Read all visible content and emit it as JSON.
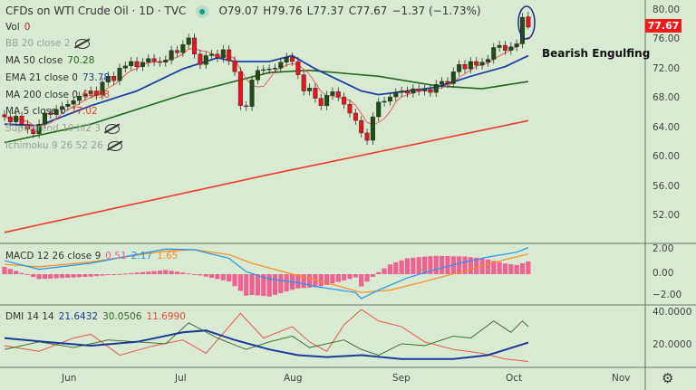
{
  "header": {
    "title": "CFDs on WTI Crude Oil · 1D · TVC",
    "ohlc": {
      "open": "O79.07",
      "high": "H79.76",
      "low": "L77.37",
      "close": "C77.67",
      "change": "−1.37 (−1.73%)"
    }
  },
  "legend": {
    "vol": {
      "label": "Vol",
      "value": "0"
    },
    "bb": {
      "label": "BB 20 close 2"
    },
    "ma50": {
      "label": "MA 50 close",
      "value": "70.28"
    },
    "ema21": {
      "label": "EMA 21 close 0",
      "value": "73.78"
    },
    "ma200": {
      "label": "MA 200 close 0",
      "value": "64.98"
    },
    "ma5": {
      "label": "MA 5 close 0",
      "value": "77.02"
    },
    "supertrend": {
      "label": "Supertrend 10 hl2 3"
    },
    "ichimoku": {
      "label": "Ichimoku 9 26 52 26"
    },
    "macd": {
      "label": "MACD 12 26 close 9",
      "hist": "0.51",
      "macd": "2.17",
      "signal": "1.65"
    },
    "dmi": {
      "label": "DMI 14 14",
      "adx": "21.6432",
      "plus_di": "30.0506",
      "minus_di": "11.6990"
    }
  },
  "annotation": "Bearish Engulfing",
  "price_axis": {
    "labels": [
      "80.00",
      "76.00",
      "72.00",
      "68.00",
      "64.00",
      "60.00",
      "56.00",
      "52.00"
    ],
    "last_price": "77.67"
  },
  "macd_axis": {
    "labels": [
      "2.00",
      "0.00",
      "−2.00"
    ]
  },
  "dmi_axis": {
    "labels": [
      "40.0000",
      "20.0000"
    ]
  },
  "time_axis": {
    "labels": [
      "Jun",
      "Jul",
      "Aug",
      "Sep",
      "Oct",
      "Nov"
    ]
  },
  "colors": {
    "background": "#d9ead3",
    "up": "#1f4d14",
    "down": "#e8141b",
    "ma5": "#f05050",
    "ema21": "#1a3fa8",
    "ma50": "#1f6b1a",
    "ma200": "#f23a2a",
    "macd": "#2196f3",
    "signal": "#ff8a1e",
    "hist": "#f06292",
    "adx": "#1a3a9a",
    "plus_di": "#2e6b22",
    "minus_di": "#f04a3a",
    "last_price": "#f21b1b"
  },
  "chart_data": {
    "type": "candlestick",
    "closes": [
      65.5,
      64.8,
      65.6,
      64.5,
      63.8,
      63.2,
      64.5,
      66.0,
      65.8,
      66.5,
      66.9,
      67.2,
      67.7,
      68.3,
      68.6,
      69.0,
      68.4,
      70.2,
      71.0,
      70.4,
      72.1,
      72.4,
      73.0,
      72.3,
      72.9,
      73.4,
      73.0,
      72.9,
      73.2,
      74.5,
      74.2,
      75.3,
      76.2,
      74.0,
      72.6,
      73.8,
      74.0,
      73.5,
      74.6,
      73.1,
      71.6,
      67.0,
      66.9,
      70.5,
      71.8,
      71.9,
      72.0,
      72.1,
      72.9,
      73.6,
      73.0,
      71.2,
      69.0,
      69.4,
      68.0,
      67.0,
      68.4,
      68.9,
      68.2,
      67.2,
      66.0,
      65.0,
      63.3,
      62.3,
      65.5,
      67.5,
      67.6,
      68.2,
      68.8,
      69.0,
      68.7,
      69.3,
      69.0,
      69.2,
      68.8,
      69.9,
      70.3,
      70.0,
      71.6,
      72.6,
      72.0,
      73.0,
      72.5,
      72.9,
      73.3,
      74.9,
      75.2,
      74.5,
      75.0,
      75.4,
      79.0,
      77.67
    ],
    "last_candle": {
      "open": 79.07,
      "high": 79.76,
      "low": 77.37,
      "close": 77.67
    },
    "ema21": [
      [
        0,
        64.5
      ],
      [
        6,
        64.3
      ],
      [
        15,
        67
      ],
      [
        23,
        69
      ],
      [
        31,
        72
      ],
      [
        37,
        73.5
      ],
      [
        40,
        73
      ],
      [
        46,
        73
      ],
      [
        50,
        73.8
      ],
      [
        54,
        72
      ],
      [
        62,
        69
      ],
      [
        65,
        68.5
      ],
      [
        75,
        69.5
      ],
      [
        81,
        71
      ],
      [
        87,
        72.3
      ],
      [
        91,
        73.78
      ]
    ],
    "ma50": [
      [
        0,
        62
      ],
      [
        15,
        64.5
      ],
      [
        31,
        68.5
      ],
      [
        46,
        71.5
      ],
      [
        53,
        71.8
      ],
      [
        65,
        71
      ],
      [
        75,
        69.7
      ],
      [
        83,
        69.3
      ],
      [
        91,
        70.28
      ]
    ],
    "ma200": [
      [
        0,
        49.8
      ],
      [
        45,
        57.5
      ],
      [
        91,
        64.98
      ]
    ],
    "macd": [
      [
        0,
        1.1
      ],
      [
        6,
        0.4
      ],
      [
        15,
        0.9
      ],
      [
        28,
        2.07
      ],
      [
        33,
        2.0
      ],
      [
        39,
        1.3
      ],
      [
        42,
        0.2
      ],
      [
        46,
        -0.4
      ],
      [
        51,
        -0.7
      ],
      [
        54,
        -1.0
      ],
      [
        61,
        -1.5
      ],
      [
        62,
        -2.0
      ],
      [
        65,
        -1.3
      ],
      [
        70,
        -0.3
      ],
      [
        75,
        0.4
      ],
      [
        80,
        1.0
      ],
      [
        84,
        1.4
      ],
      [
        89,
        1.8
      ],
      [
        91,
        2.17
      ]
    ],
    "signal": [
      [
        0,
        0.8
      ],
      [
        6,
        0.6
      ],
      [
        15,
        1.0
      ],
      [
        28,
        1.9
      ],
      [
        33,
        2.0
      ],
      [
        39,
        1.6
      ],
      [
        43,
        0.9
      ],
      [
        50,
        0.0
      ],
      [
        56,
        -0.7
      ],
      [
        62,
        -1.5
      ],
      [
        67,
        -1.3
      ],
      [
        73,
        -0.6
      ],
      [
        81,
        0.4
      ],
      [
        87,
        1.2
      ],
      [
        91,
        1.65
      ]
    ],
    "adx": [
      [
        0,
        24
      ],
      [
        7,
        22
      ],
      [
        15,
        20
      ],
      [
        23,
        22
      ],
      [
        31,
        27
      ],
      [
        35,
        28
      ],
      [
        40,
        23
      ],
      [
        46,
        18
      ],
      [
        51,
        15
      ],
      [
        56,
        14
      ],
      [
        62,
        15
      ],
      [
        69,
        13
      ],
      [
        78,
        13
      ],
      [
        84,
        15
      ],
      [
        91,
        21.64
      ]
    ],
    "plus_di": [
      [
        0,
        18
      ],
      [
        6,
        22
      ],
      [
        12,
        19
      ],
      [
        18,
        23
      ],
      [
        28,
        21
      ],
      [
        32,
        32
      ],
      [
        37,
        24
      ],
      [
        42,
        18
      ],
      [
        46,
        22
      ],
      [
        50,
        25
      ],
      [
        53,
        19
      ],
      [
        59,
        23
      ],
      [
        62,
        18
      ],
      [
        65,
        15
      ],
      [
        69,
        21
      ],
      [
        73,
        20
      ],
      [
        78,
        25
      ],
      [
        81,
        24
      ],
      [
        85,
        33
      ],
      [
        88,
        27
      ],
      [
        90,
        33
      ],
      [
        91,
        30.05
      ]
    ],
    "minus_di": [
      [
        0,
        20
      ],
      [
        6,
        17
      ],
      [
        12,
        24
      ],
      [
        15,
        26
      ],
      [
        20,
        15
      ],
      [
        26,
        20
      ],
      [
        31,
        23
      ],
      [
        35,
        16
      ],
      [
        41,
        37
      ],
      [
        45,
        24
      ],
      [
        50,
        30
      ],
      [
        53,
        22
      ],
      [
        56,
        17
      ],
      [
        59,
        31
      ],
      [
        62,
        39
      ],
      [
        65,
        33
      ],
      [
        69,
        30
      ],
      [
        73,
        22
      ],
      [
        78,
        18
      ],
      [
        83,
        16
      ],
      [
        87,
        13
      ],
      [
        91,
        11.69
      ]
    ],
    "price_range": [
      52,
      80
    ],
    "macd_range": [
      -2,
      2
    ],
    "dmi_range": [
      20,
      40
    ]
  }
}
